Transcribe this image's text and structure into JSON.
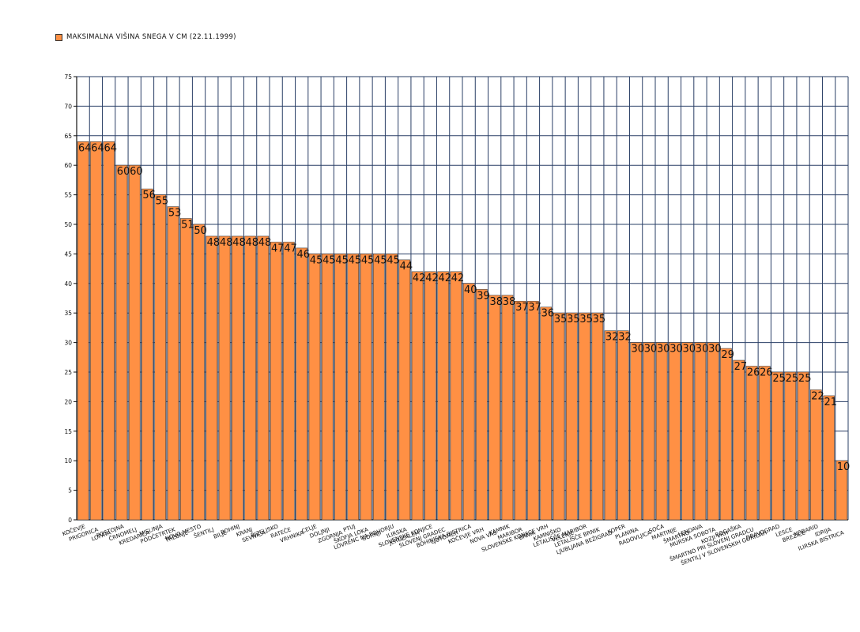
{
  "chart_data": {
    "type": "bar",
    "legend": {
      "label": "MAKSIMALNA VIŠINA SNEGA V CM (22.11.1999)",
      "position": "top-left"
    },
    "ylim": [
      0,
      75
    ],
    "yticks": [
      0,
      5,
      10,
      15,
      20,
      25,
      30,
      35,
      40,
      45,
      50,
      55,
      60,
      65,
      70,
      75
    ],
    "grid": true,
    "colors": {
      "bar": "#ff9044",
      "bar_stroke": "#444444",
      "grid": "#2a3f66"
    },
    "categories": [
      "Kočevje",
      "Prigorica",
      "Lopata",
      "Postojna",
      "Črnomelj",
      "Kredarica",
      "Mislinja",
      "Podčetrtek",
      "Trebnje",
      "Novo mesto",
      "Šentilj",
      "Bilje",
      "Bohinj",
      "Kranj",
      "Sevnica",
      "Bizeljsko",
      "Rateče",
      "Vrhnika",
      "Celje",
      "Doljnji",
      "Zgornja",
      "Ptuj",
      "Škofja Loka",
      "Gornji",
      "Lovrenc na Pohorju",
      "Ilirska",
      "Jeruzalem",
      "Slovenske Konjice",
      "Slovenj Gradec",
      "Ljutomer",
      "Bohinjska Bistrica",
      "Kočevje vrh",
      "Nova vas",
      "Kamnik",
      "Maribor",
      "Brnik",
      "Slovenske Konjice vrh",
      "Kamniško",
      "Velenje",
      "Letališče Maribor",
      "Letališče Brnik",
      "Ljubljana Bežigrad",
      "Koper",
      "Planina",
      "Radovljica",
      "Soča",
      "Martinje",
      "Šmartno",
      "Lendava",
      "Murska Sobota",
      "Kozji vrh",
      "Rogaška",
      "Šmartno pri Slovenj Gradcu",
      "Šentilj v Slovenskih goricah",
      "Dravograd",
      "Lesce",
      "Brežice",
      "Kobarid",
      "Idrija",
      "Ilirska Bistrica"
    ],
    "values": [
      64,
      64,
      64,
      60,
      60,
      56,
      55,
      53,
      51,
      50,
      48,
      48,
      48,
      48,
      48,
      47,
      47,
      46,
      45,
      45,
      45,
      45,
      45,
      45,
      45,
      44,
      42,
      42,
      42,
      42,
      40,
      39,
      38,
      38,
      37,
      37,
      36,
      35,
      35,
      35,
      35,
      32,
      32,
      30,
      30,
      30,
      30,
      30,
      30,
      30,
      29,
      27,
      26,
      26,
      25,
      25,
      25,
      22,
      21,
      10
    ],
    "value_labels": [
      "64",
      "64",
      "64",
      "60",
      "60",
      "56",
      "55",
      "53",
      "51",
      "50",
      "48",
      "48",
      "48",
      "48",
      "48",
      "47",
      "47",
      "46",
      "45",
      "45",
      "45",
      "45",
      "45",
      "45",
      "45",
      "44",
      "42",
      "42",
      "42",
      "42",
      "40",
      "39",
      "38",
      "38",
      "37",
      "37",
      "36",
      "35",
      "35",
      "35",
      "35",
      "32",
      "32",
      "30",
      "30",
      "30",
      "30",
      "30",
      "30",
      "30",
      "29",
      "27",
      "26",
      "26",
      "25",
      "25",
      "25",
      "22",
      "21",
      "10"
    ]
  }
}
